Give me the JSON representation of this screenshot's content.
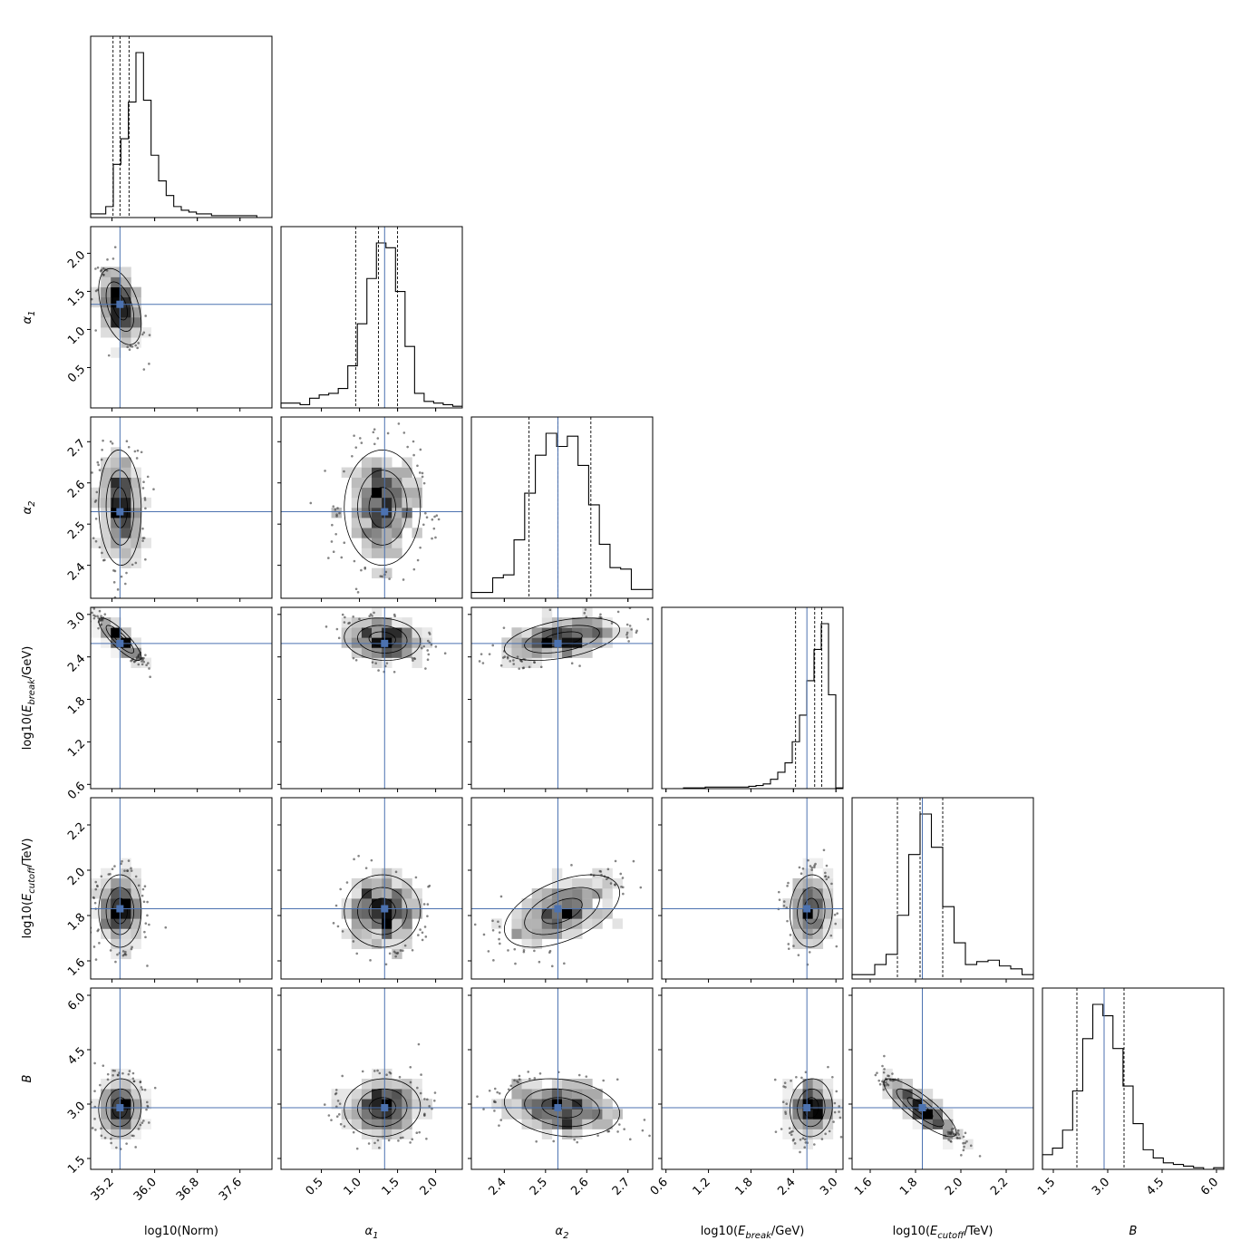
{
  "chart_data": {
    "type": "corner",
    "truth_color": "#4c72b0",
    "params": [
      {
        "label": {
          "pre": "log10(Norm)",
          "it": "",
          "sub": "",
          "post": ""
        },
        "range": [
          34.8,
          38.2
        ],
        "ticks": [
          35.2,
          36.0,
          36.8,
          37.6
        ],
        "tick_labels": [
          "35.2",
          "36.0",
          "36.8",
          "37.6"
        ],
        "truth": 35.35,
        "quantiles": [
          35.22,
          35.35,
          35.52
        ],
        "mean": 35.35,
        "sd": 0.2,
        "hist": [
          2,
          2,
          6,
          29,
          43,
          63,
          90,
          64,
          34,
          20,
          12,
          6,
          4,
          3,
          2,
          2,
          1,
          1,
          1,
          1,
          1,
          1,
          0,
          0
        ]
      },
      {
        "label": {
          "pre": "",
          "it": "α",
          "sub": "1",
          "post": ""
        },
        "range": [
          -0.03,
          2.35
        ],
        "ticks": [
          0.5,
          1.0,
          1.5,
          2.0
        ],
        "tick_labels": [
          "0.5",
          "1.0",
          "1.5",
          "2.0"
        ],
        "truth": 1.33,
        "quantiles": [
          0.95,
          1.25,
          1.5
        ],
        "mean": 1.3,
        "sd": 0.25,
        "hist": [
          3,
          3,
          2,
          6,
          8,
          9,
          12,
          26,
          52,
          80,
          102,
          99,
          72,
          38,
          9,
          4,
          3,
          2,
          1
        ]
      },
      {
        "label": {
          "pre": "",
          "it": "α",
          "sub": "2",
          "post": ""
        },
        "range": [
          2.32,
          2.76
        ],
        "ticks": [
          2.4,
          2.5,
          2.6,
          2.7
        ],
        "tick_labels": [
          "2.4",
          "2.5",
          "2.6",
          "2.7"
        ],
        "truth": 2.53,
        "quantiles": [
          2.46,
          2.53,
          2.61
        ],
        "mean": 2.54,
        "sd": 0.07,
        "hist": [
          4,
          4,
          14,
          16,
          40,
          72,
          98,
          113,
          104,
          111,
          91,
          64,
          37,
          21,
          20,
          6,
          6
        ]
      },
      {
        "label": {
          "pre": "log10(",
          "it": "E",
          "sub": "break",
          "post": "/GeV)"
        },
        "range": [
          0.54,
          3.1
        ],
        "ticks": [
          0.6,
          1.2,
          1.8,
          2.4,
          3.0
        ],
        "tick_labels": [
          "0.6",
          "1.2",
          "1.8",
          "2.4",
          "3.0"
        ],
        "truth": 2.59,
        "quantiles": [
          2.43,
          2.7,
          2.8
        ],
        "mean": 2.65,
        "sd": 0.15,
        "hist": [
          0,
          0,
          0,
          1,
          1,
          1,
          2,
          2,
          2,
          2,
          2,
          2,
          3,
          4,
          6,
          12,
          21,
          33,
          60,
          94,
          138,
          178,
          211,
          120,
          1
        ]
      },
      {
        "label": {
          "pre": "log10(",
          "it": "E",
          "sub": "cutoff",
          "post": "/TeV)"
        },
        "range": [
          1.52,
          2.32
        ],
        "ticks": [
          1.6,
          1.8,
          2.0,
          2.2
        ],
        "tick_labels": [
          "1.6",
          "1.8",
          "2.0",
          "2.2"
        ],
        "truth": 1.83,
        "quantiles": [
          1.72,
          1.82,
          1.92
        ],
        "mean": 1.82,
        "sd": 0.08,
        "hist": [
          3,
          3,
          10,
          17,
          44,
          86,
          114,
          91,
          50,
          25,
          10,
          12,
          13,
          9,
          7,
          3
        ]
      },
      {
        "label": {
          "pre": "",
          "it": "B",
          "sub": "",
          "post": ""
        },
        "range": [
          1.2,
          6.2
        ],
        "ticks": [
          1.5,
          3.0,
          4.5,
          6.0
        ],
        "tick_labels": [
          "1.5",
          "3.0",
          "4.5",
          "6.0"
        ],
        "truth": 2.9,
        "quantiles": [
          2.15,
          2.9,
          3.45
        ],
        "mean": 2.9,
        "sd": 0.4,
        "hist": [
          9,
          13,
          24,
          48,
          80,
          101,
          94,
          74,
          51,
          28,
          12,
          7,
          4,
          3,
          2,
          1,
          0,
          1
        ]
      }
    ],
    "pairs": [
      {
        "row": 1,
        "col": 0,
        "corr": -0.45
      },
      {
        "row": 2,
        "col": 0,
        "corr": -0.05
      },
      {
        "row": 2,
        "col": 1,
        "corr": 0.0
      },
      {
        "row": 3,
        "col": 0,
        "corr": -0.85
      },
      {
        "row": 3,
        "col": 1,
        "corr": -0.1
      },
      {
        "row": 3,
        "col": 2,
        "corr": 0.45
      },
      {
        "row": 4,
        "col": 0,
        "corr": 0.0
      },
      {
        "row": 4,
        "col": 1,
        "corr": 0.0
      },
      {
        "row": 4,
        "col": 2,
        "corr": 0.5
      },
      {
        "row": 4,
        "col": 3,
        "corr": 0.05
      },
      {
        "row": 5,
        "col": 0,
        "corr": 0.05
      },
      {
        "row": 5,
        "col": 1,
        "corr": 0.05
      },
      {
        "row": 5,
        "col": 2,
        "corr": -0.2
      },
      {
        "row": 5,
        "col": 3,
        "corr": 0.05
      },
      {
        "row": 5,
        "col": 4,
        "corr": -0.85
      }
    ]
  }
}
